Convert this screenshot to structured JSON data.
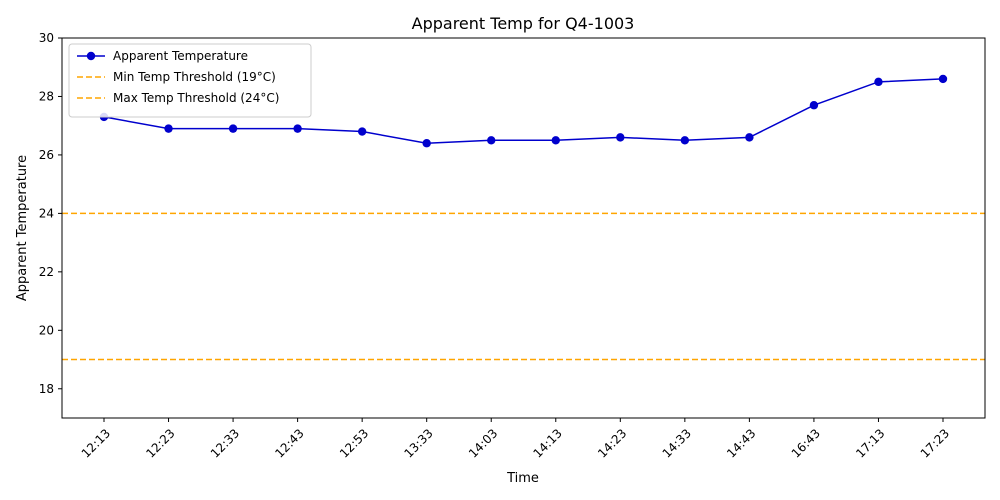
{
  "chart_data": {
    "type": "line",
    "title": "Apparent Temp for Q4-1003",
    "xlabel": "Time",
    "ylabel": "Apparent Temperature",
    "categories": [
      "12:13",
      "12:23",
      "12:33",
      "12:43",
      "12:53",
      "13:33",
      "14:03",
      "14:13",
      "14:23",
      "14:33",
      "14:43",
      "16:43",
      "17:13",
      "17:23"
    ],
    "series": [
      {
        "name": "Apparent Temperature",
        "color": "#0000cd",
        "values": [
          27.3,
          26.9,
          26.9,
          26.9,
          26.8,
          26.4,
          26.5,
          26.5,
          26.6,
          26.5,
          26.6,
          27.7,
          28.5,
          28.6
        ]
      }
    ],
    "thresholds": [
      {
        "name": "Min Temp Threshold (19°C)",
        "value": 19,
        "color": "#ffa500"
      },
      {
        "name": "Max Temp Threshold (24°C)",
        "value": 24,
        "color": "#ffa500"
      }
    ],
    "ylim": [
      17,
      30
    ],
    "yticks": [
      18,
      20,
      22,
      24,
      26,
      28,
      30
    ],
    "grid": false,
    "legend_position": "top-left"
  }
}
